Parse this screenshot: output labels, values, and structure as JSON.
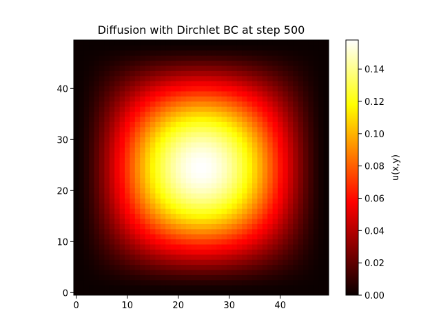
{
  "chart_data": {
    "type": "heatmap",
    "title": "Diffusion with Dirchlet BC at step 500",
    "xlabel": "",
    "ylabel": "",
    "grid": false,
    "colormap": "hot",
    "x_range": [
      0,
      49
    ],
    "y_range": [
      0,
      49
    ],
    "y_origin": "lower",
    "x_ticks": [
      "0",
      "10",
      "20",
      "30",
      "40"
    ],
    "y_ticks": [
      "0",
      "10",
      "20",
      "30",
      "40"
    ],
    "field": {
      "shape": [
        50,
        50
      ],
      "center": [
        24.5,
        24.5
      ],
      "peak_value": 0.158,
      "boundary_value": 0.0
    },
    "colorbar": {
      "label": "u(x,y)",
      "range": [
        0.0,
        0.158
      ],
      "ticks": [
        "0.00",
        "0.02",
        "0.04",
        "0.06",
        "0.08",
        "0.10",
        "0.12",
        "0.14"
      ]
    }
  }
}
